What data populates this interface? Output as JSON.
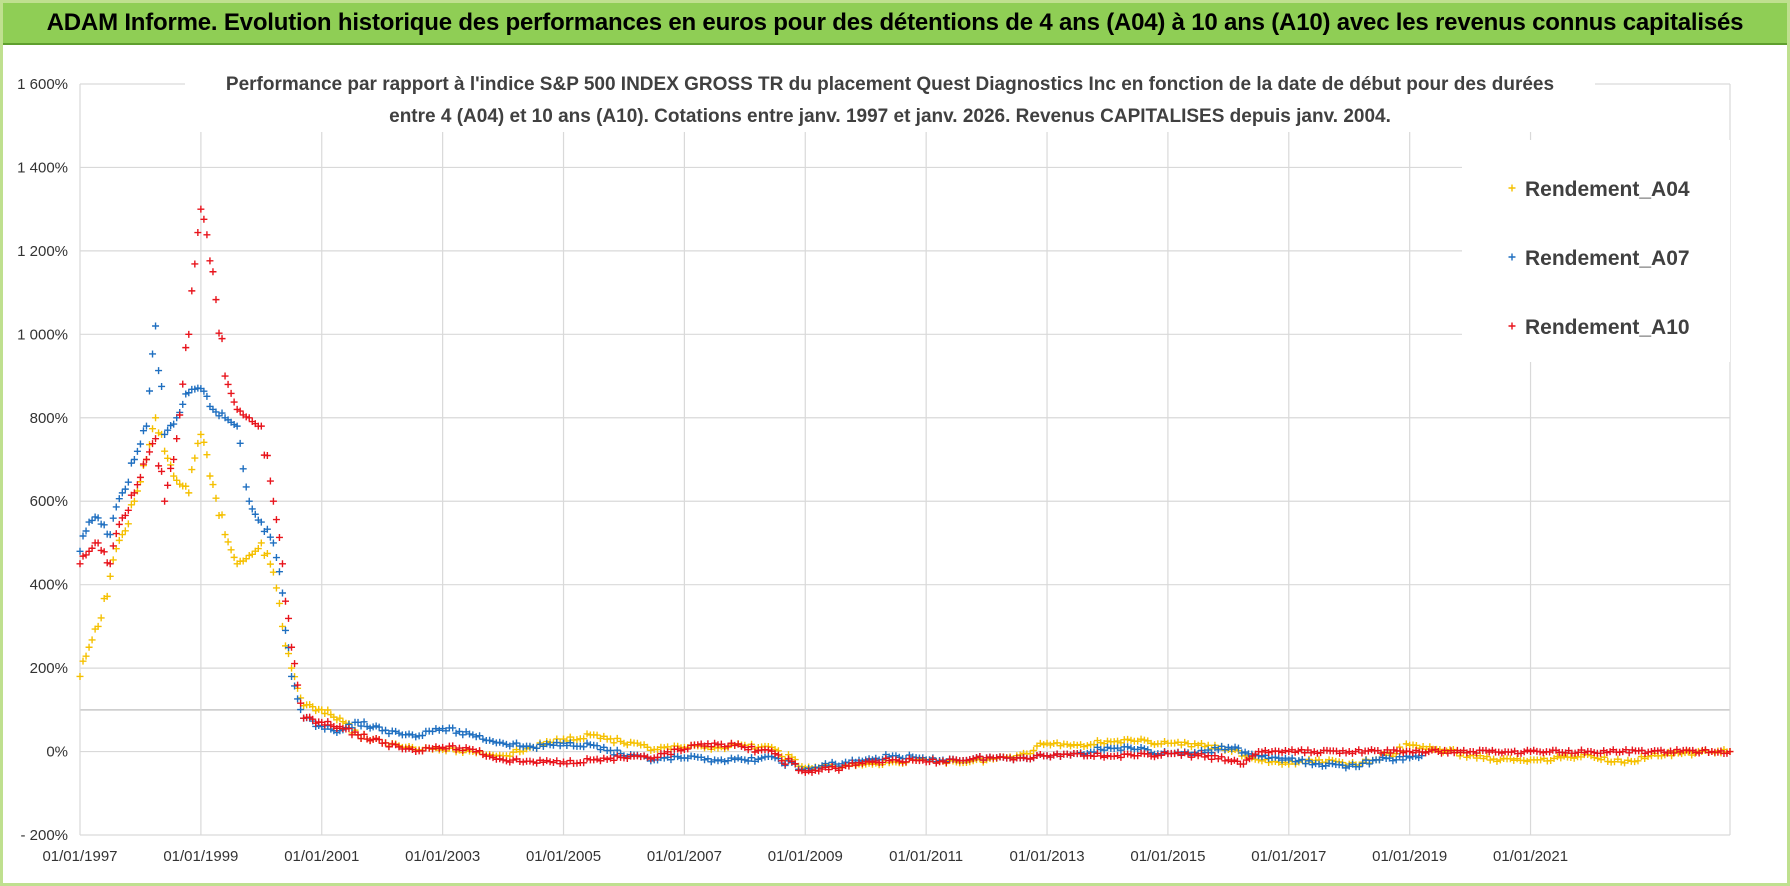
{
  "header": {
    "title": "ADAM Informe. Evolution historique des performances en euros pour des détentions de 4 ans (A04) à 10 ans (A10) avec les revenus connus capitalisés"
  },
  "chart_data": {
    "type": "scatter",
    "title_lines": [
      "Performance par rapport à l'indice S&P 500 INDEX GROSS TR  du placement Quest Diagnostics Inc en fonction de la date de début pour des durées",
      "entre 4 (A04) et 10 ans (A10).  Cotations entre janv. 1997 et janv. 2026. Revenus CAPITALISES depuis janv. 2004."
    ],
    "xlabel": "",
    "ylabel": "",
    "ylim": [
      -200,
      1600
    ],
    "y_ticks": [
      -200,
      0,
      200,
      400,
      600,
      800,
      1000,
      1200,
      1400,
      1600
    ],
    "y_tick_labels": [
      "- 200%",
      "0%",
      "200%",
      "400%",
      "600%",
      "800%",
      "1 000%",
      "1 200%",
      "1 400%",
      "1 600%"
    ],
    "xlim": [
      1997.0,
      2024.3
    ],
    "x_ticks": [
      1997,
      1999,
      2001,
      2003,
      2005,
      2007,
      2009,
      2011,
      2013,
      2015,
      2017,
      2019,
      2021
    ],
    "x_tick_labels": [
      "01/01/1997",
      "01/01/1999",
      "01/01/2001",
      "01/01/2003",
      "01/01/2005",
      "01/01/2007",
      "01/01/2009",
      "01/01/2011",
      "01/01/2013",
      "01/01/2015",
      "01/01/2017",
      "01/01/2019",
      "01/01/2021"
    ],
    "grid": true,
    "legend_position": "top-right",
    "marker": "+",
    "series": [
      {
        "name": "Rendement_A04",
        "color": "#f5c000",
        "x": [
          1997.0,
          1997.15,
          1997.3,
          1997.5,
          1997.7,
          1997.9,
          1998.1,
          1998.25,
          1998.4,
          1998.6,
          1998.8,
          1999.0,
          1999.2,
          1999.4,
          1999.6,
          1999.8,
          2000.0,
          2000.2,
          2000.35,
          2000.5,
          2000.7,
          2001.0,
          2001.3,
          2001.6,
          2002.0,
          2002.5,
          2003.0,
          2003.5,
          2004.0,
          2004.5,
          2005.0,
          2005.5,
          2006.0,
          2006.5,
          2007.0,
          2007.5,
          2008.0,
          2008.5,
          2009.0,
          2009.5,
          2010.0,
          2010.5,
          2011.0,
          2011.5,
          2012.0,
          2012.5,
          2013.0,
          2013.5,
          2014.0,
          2014.5,
          2015.0,
          2015.5,
          2016.0,
          2016.5,
          2017.0,
          2017.5,
          2018.0,
          2018.5,
          2019.0,
          2019.5,
          2020.0,
          2020.5,
          2021.0,
          2021.5,
          2022.0,
          2022.5,
          2023.0,
          2023.5,
          2024.0,
          2024.3
        ],
        "y": [
          180,
          250,
          300,
          420,
          520,
          600,
          700,
          800,
          720,
          650,
          620,
          760,
          640,
          520,
          450,
          470,
          500,
          430,
          300,
          200,
          110,
          100,
          80,
          40,
          20,
          10,
          5,
          0,
          -10,
          10,
          30,
          40,
          20,
          5,
          10,
          10,
          15,
          5,
          -40,
          -35,
          -30,
          -25,
          -20,
          -25,
          -20,
          -10,
          20,
          15,
          25,
          25,
          20,
          15,
          5,
          -20,
          -30,
          -20,
          -30,
          -20,
          15,
          5,
          -10,
          -20,
          -20,
          -15,
          -10,
          -25,
          -10,
          -5,
          0,
          0
        ]
      },
      {
        "name": "Rendement_A07",
        "color": "#1f6fc0",
        "x": [
          1997.0,
          1997.15,
          1997.3,
          1997.5,
          1997.7,
          1997.9,
          1998.1,
          1998.25,
          1998.4,
          1998.6,
          1998.8,
          1999.0,
          1999.2,
          1999.4,
          1999.6,
          1999.8,
          2000.0,
          2000.2,
          2000.35,
          2000.5,
          2000.7,
          2001.0,
          2001.3,
          2001.6,
          2002.0,
          2002.5,
          2003.0,
          2003.5,
          2004.0,
          2004.5,
          2005.0,
          2005.5,
          2006.0,
          2006.5,
          2007.0,
          2007.5,
          2008.0,
          2008.5,
          2009.0,
          2009.5,
          2010.0,
          2010.5,
          2011.0,
          2011.5,
          2012.0,
          2012.5,
          2013.0,
          2013.5,
          2014.0,
          2014.5,
          2015.0,
          2015.5,
          2016.0,
          2016.5,
          2017.0,
          2017.5,
          2018.0,
          2018.5,
          2019.0,
          2019.2
        ],
        "y": [
          480,
          550,
          560,
          520,
          620,
          700,
          780,
          1020,
          760,
          800,
          860,
          870,
          820,
          800,
          780,
          600,
          550,
          500,
          380,
          180,
          80,
          60,
          50,
          70,
          50,
          40,
          55,
          40,
          20,
          10,
          20,
          15,
          -10,
          -20,
          -15,
          -20,
          -20,
          -15,
          -45,
          -30,
          -20,
          -10,
          -20,
          -20,
          -15,
          -15,
          -10,
          -5,
          10,
          5,
          -5,
          -5,
          10,
          -10,
          -20,
          -30,
          -35,
          -20,
          -15,
          -10
        ]
      },
      {
        "name": "Rendement_A10",
        "color": "#e8141c",
        "x": [
          1997.0,
          1997.15,
          1997.3,
          1997.5,
          1997.7,
          1997.9,
          1998.1,
          1998.25,
          1998.4,
          1998.6,
          1998.8,
          1999.0,
          1999.2,
          1999.4,
          1999.6,
          1999.8,
          2000.0,
          2000.2,
          2000.35,
          2000.5,
          2000.7,
          2001.0,
          2001.3,
          2001.6,
          2002.0,
          2002.5,
          2003.0,
          2003.5,
          2004.0,
          2004.5,
          2005.0,
          2005.5,
          2006.0,
          2006.5,
          2007.0,
          2007.5,
          2008.0,
          2008.5,
          2009.0,
          2009.5,
          2010.0,
          2010.5,
          2011.0,
          2011.5,
          2012.0,
          2012.5,
          2013.0,
          2013.5,
          2014.0,
          2014.5,
          2015.0,
          2015.5,
          2016.0,
          2016.2,
          2016.5,
          2017.0,
          2018.0,
          2019.0,
          2020.0,
          2021.0,
          2022.0,
          2023.0,
          2024.0,
          2024.3
        ],
        "y": [
          450,
          480,
          500,
          450,
          560,
          620,
          700,
          750,
          600,
          750,
          1000,
          1300,
          1150,
          900,
          820,
          800,
          780,
          600,
          450,
          250,
          80,
          70,
          60,
          40,
          20,
          5,
          10,
          5,
          -20,
          -25,
          -25,
          -20,
          -15,
          -15,
          5,
          20,
          10,
          -5,
          -50,
          -40,
          -25,
          -20,
          -25,
          -20,
          -15,
          -15,
          -10,
          -5,
          -10,
          -10,
          -5,
          -10,
          -20,
          -30,
          0,
          0,
          0,
          0,
          0,
          0,
          0,
          0,
          0,
          0
        ]
      }
    ]
  }
}
